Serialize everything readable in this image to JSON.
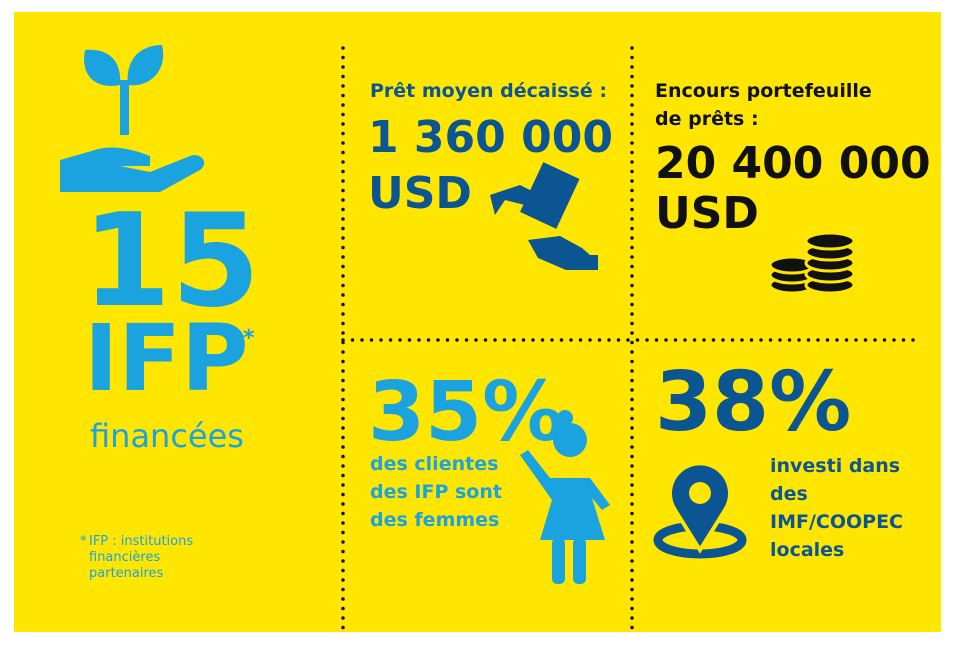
{
  "left": {
    "number": "15",
    "label": "IFP",
    "asterisk": "*",
    "sublabel": "financées",
    "footnote": {
      "asterisk": "*",
      "lines": [
        "IFP : institutions",
        "financières",
        "partenaires"
      ]
    }
  },
  "loan": {
    "label": "Prêt moyen décaissé :",
    "amount": "1 360 000",
    "currency": "USD"
  },
  "portfolio": {
    "label": [
      "Encours portefeuille",
      "de prêts :"
    ],
    "amount": "20 400 000",
    "currency": "USD"
  },
  "women": {
    "percent": "35%",
    "lines": [
      "des clientes",
      "des IFP sont",
      "des femmes"
    ]
  },
  "local": {
    "percent": "38%",
    "lines": [
      "investi dans",
      "des",
      "IMF/COOPEC",
      "locales"
    ]
  }
}
